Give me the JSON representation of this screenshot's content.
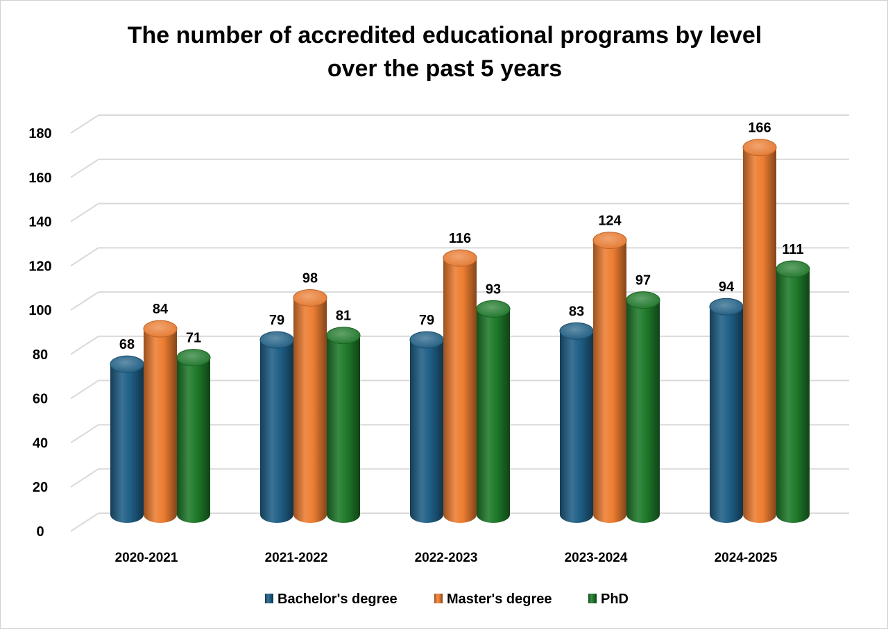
{
  "title_line1": "The number of accredited educational programs by level",
  "title_line2": "over the past 5 years",
  "chart_data": {
    "type": "bar",
    "title": "The number of accredited educational programs by level over the past 5 years",
    "categories": [
      "2020-2021",
      "2021-2022",
      "2022-2023",
      "2023-2024",
      "2024-2025"
    ],
    "series": [
      {
        "name": "Bachelor's degree",
        "values": [
          68,
          79,
          79,
          83,
          94
        ],
        "color": "#1f5f86"
      },
      {
        "name": "Master's degree",
        "values": [
          84,
          98,
          116,
          124,
          166
        ],
        "color": "#ed7d31"
      },
      {
        "name": "PhD",
        "values": [
          71,
          81,
          93,
          97,
          111
        ],
        "color": "#1e7a2a"
      }
    ],
    "ylim": [
      0,
      180
    ],
    "yticks": [
      "0",
      "20",
      "40",
      "60",
      "80",
      "100",
      "120",
      "140",
      "160",
      "180"
    ],
    "grid": true,
    "legend_position": "bottom",
    "data_labels": true
  }
}
